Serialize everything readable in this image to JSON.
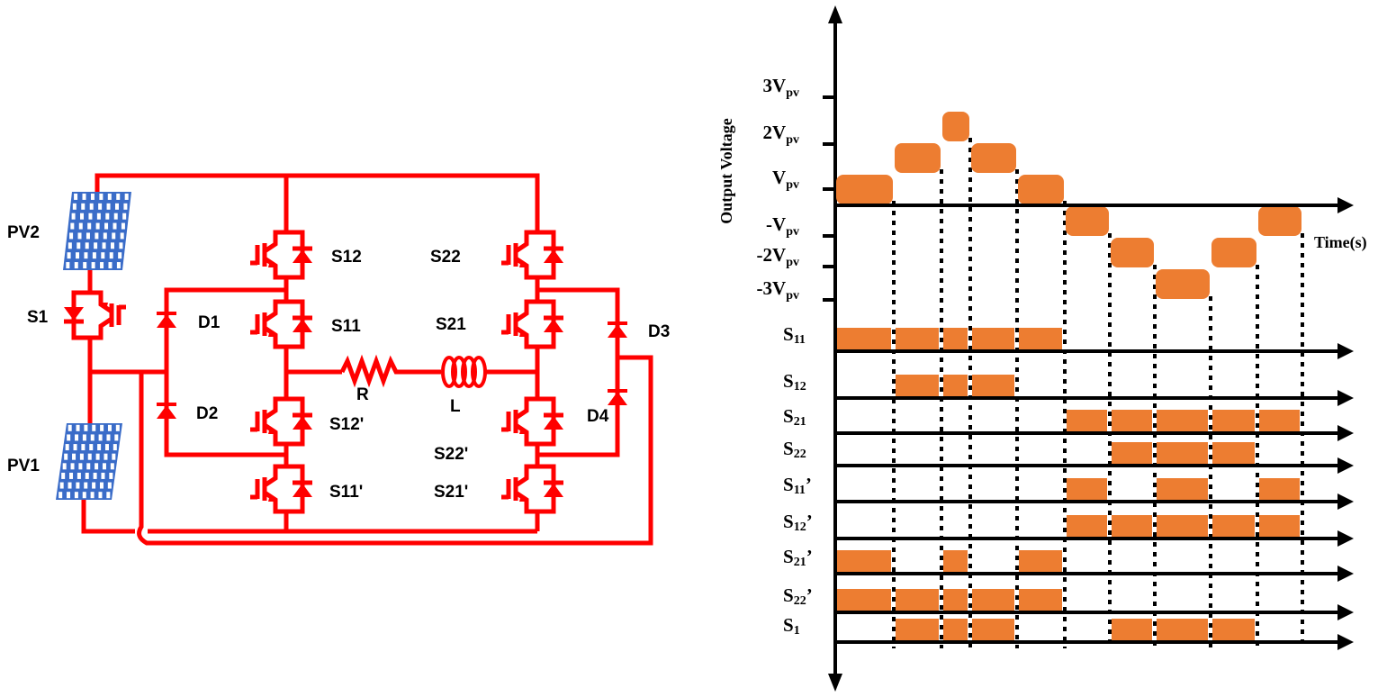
{
  "circuit": {
    "wire_color": "#ff0000",
    "panel_color": "#3a6cc8",
    "labels": {
      "pv2": "PV2",
      "pv1": "PV1",
      "s1": "S1",
      "d1": "D1",
      "d2": "D2",
      "d3": "D3",
      "d4": "D4",
      "s12": "S12",
      "s11": "S11",
      "s12p": "S12'",
      "s11p": "S11'",
      "s22": "S22",
      "s21": "S21",
      "s22p": "S22'",
      "s21p": "S21'",
      "r": "R",
      "l": "L"
    }
  },
  "waveform": {
    "pulse_color": "#ed7d31",
    "y_axis_label": "Output Voltage",
    "x_axis_label": "Time(s)",
    "levels_labels": [
      {
        "pre": "3V",
        "sub": "pv"
      },
      {
        "pre": "2V",
        "sub": "pv"
      },
      {
        "pre": "V",
        "sub": "pv"
      },
      {
        "pre": "-V",
        "sub": "pv"
      },
      {
        "pre": "-2V",
        "sub": "pv"
      },
      {
        "pre": "-3V",
        "sub": "pv"
      }
    ],
    "output_levels": [
      1,
      2,
      3,
      2,
      1,
      -1,
      -2,
      -3,
      -2,
      -1
    ],
    "switches": [
      {
        "base": "S",
        "sub": "11",
        "prime": "",
        "states": [
          1,
          1,
          1,
          1,
          1,
          0,
          0,
          0,
          0,
          0
        ]
      },
      {
        "base": "S",
        "sub": "12",
        "prime": "",
        "states": [
          0,
          1,
          1,
          1,
          0,
          0,
          0,
          0,
          0,
          0
        ]
      },
      {
        "base": "S",
        "sub": "21",
        "prime": "",
        "states": [
          0,
          0,
          0,
          0,
          0,
          1,
          1,
          1,
          1,
          1
        ]
      },
      {
        "base": "S",
        "sub": "22",
        "prime": "",
        "states": [
          0,
          0,
          0,
          0,
          0,
          0,
          1,
          1,
          1,
          0
        ]
      },
      {
        "base": "S",
        "sub": "11",
        "prime": "’",
        "states": [
          0,
          0,
          0,
          0,
          0,
          1,
          0,
          1,
          0,
          1
        ]
      },
      {
        "base": "S",
        "sub": "12",
        "prime": "’",
        "states": [
          0,
          0,
          0,
          0,
          0,
          1,
          1,
          1,
          1,
          1
        ]
      },
      {
        "base": "S",
        "sub": "21",
        "prime": "’",
        "states": [
          1,
          0,
          1,
          0,
          1,
          0,
          0,
          0,
          0,
          0
        ]
      },
      {
        "base": "S",
        "sub": "22",
        "prime": "’",
        "states": [
          1,
          1,
          1,
          1,
          1,
          0,
          0,
          0,
          0,
          0
        ]
      },
      {
        "base": "S",
        "sub": "1",
        "prime": "",
        "states": [
          0,
          1,
          1,
          1,
          0,
          0,
          1,
          1,
          1,
          0
        ]
      }
    ]
  }
}
